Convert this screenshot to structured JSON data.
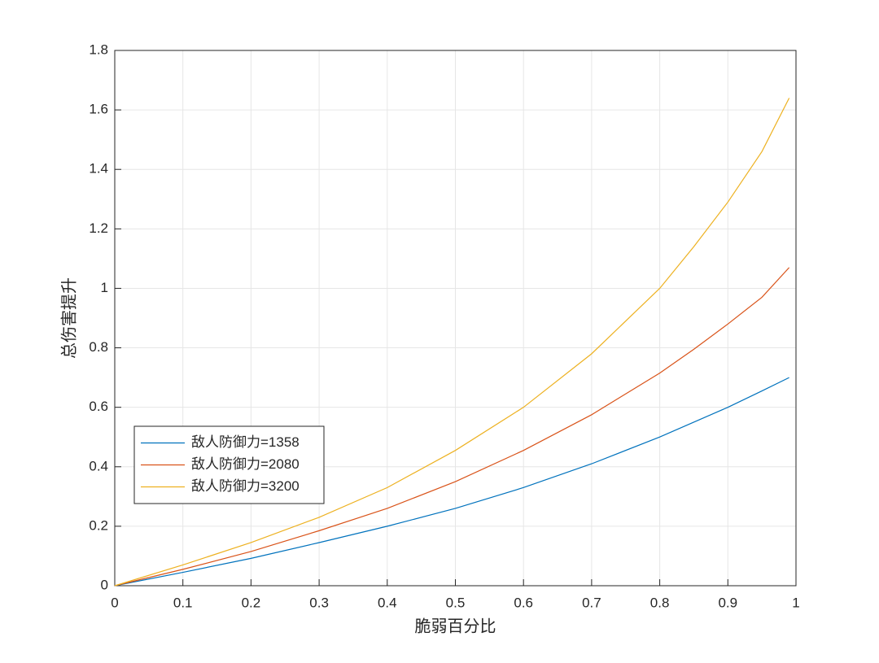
{
  "chart_data": {
    "type": "line",
    "xlabel": "脆弱百分比",
    "ylabel": "总伤害提升",
    "x": [
      0,
      0.1,
      0.2,
      0.3,
      0.4,
      0.5,
      0.6,
      0.7,
      0.8,
      0.85,
      0.9,
      0.95,
      0.99
    ],
    "series": [
      {
        "name": "敌人防御力=1358",
        "color": "#0072BD",
        "values": [
          0,
          0.045,
          0.092,
          0.145,
          0.2,
          0.26,
          0.33,
          0.41,
          0.5,
          0.55,
          0.6,
          0.655,
          0.7
        ]
      },
      {
        "name": "敌人防御力=2080",
        "color": "#D95319",
        "values": [
          0,
          0.055,
          0.115,
          0.185,
          0.26,
          0.35,
          0.455,
          0.575,
          0.715,
          0.795,
          0.88,
          0.97,
          1.07
        ]
      },
      {
        "name": "敌人防御力=3200",
        "color": "#EDB120",
        "values": [
          0,
          0.07,
          0.145,
          0.23,
          0.33,
          0.455,
          0.6,
          0.78,
          1.0,
          1.14,
          1.29,
          1.46,
          1.64
        ]
      }
    ],
    "xlim": [
      0,
      1
    ],
    "ylim": [
      0,
      1.8
    ],
    "xticks": [
      0,
      0.1,
      0.2,
      0.3,
      0.4,
      0.5,
      0.6,
      0.7,
      0.8,
      0.9,
      1
    ],
    "yticks": [
      0,
      0.2,
      0.4,
      0.6,
      0.8,
      1,
      1.2,
      1.4,
      1.6,
      1.8
    ],
    "grid": true,
    "legend": "lower-left"
  }
}
